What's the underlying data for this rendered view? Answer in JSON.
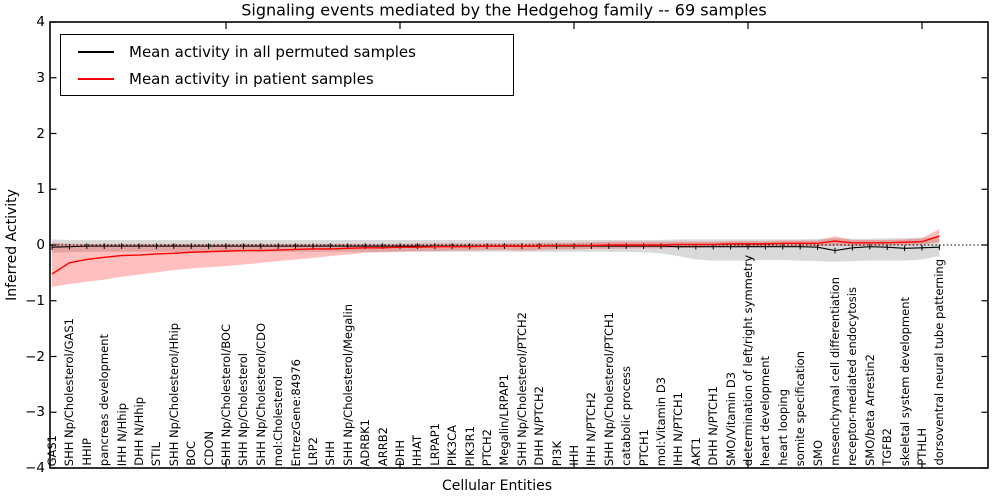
{
  "chart_data": {
    "type": "line",
    "title": "Signaling events mediated by the Hedgehog family -- 69 samples",
    "xlabel": "Cellular Entities",
    "ylabel": "Inferred Activity",
    "ylim": [
      -4,
      4
    ],
    "ytick_values": [
      4,
      3,
      2,
      1,
      0,
      -1,
      -2,
      -3,
      -4
    ],
    "ytick_labels": [
      "4",
      "3",
      "2",
      "1",
      "0",
      "−1",
      "−2",
      "−3",
      "−4"
    ],
    "xtick_values": [
      10,
      20,
      30,
      40,
      50
    ],
    "grid": false,
    "legend_position": "upper left",
    "zero_line": {
      "value": 0,
      "style": "dotted",
      "color": "#000000"
    },
    "categories": [
      "GAS1",
      "SHH Np/Cholesterol/GAS1",
      "HHIP",
      "pancreas development",
      "IHH N/Hhip",
      "DHH N/Hhip",
      "STIL",
      "SHH Np/Cholesterol/Hhip",
      "BOC",
      "CDON",
      "SHH Np/Cholesterol/BOC",
      "SHH Np/Cholesterol",
      "SHH Np/Cholesterol/CDO",
      "mol:Cholesterol",
      "EntrezGene:84976",
      "LRP2",
      "SHH",
      "SHH Np/Cholesterol/Megalin",
      "ADRBK1",
      "ARRB2",
      "DHH",
      "HHAT",
      "LRPAP1",
      "PIK3CA",
      "PIK3R1",
      "PTCH2",
      "Megalin/LRPAP1",
      "SHH Np/Cholesterol/PTCH2",
      "DHH N/PTCH2",
      "PI3K",
      "IHH",
      "IHH N/PTCH2",
      "SHH Np/Cholesterol/PTCH1",
      "catabolic process",
      "PTCH1",
      "mol:Vitamin D3",
      "IHH N/PTCH1",
      "AKT1",
      "DHH N/PTCH1",
      "SMO/Vitamin D3",
      "determination of left/right symmetry",
      "heart development",
      "heart looping",
      "somite specification",
      "SMO",
      "mesenchymal cell differentiation",
      "receptor-mediated endocytosis",
      "SMO/beta Arrestin2",
      "TGFB2",
      "skeletal system development",
      "PTHLH",
      "dorsoventral neural tube patterning"
    ],
    "series": [
      {
        "name": "Mean activity in all permuted samples",
        "color": "#000000",
        "marker": "vertical-tick",
        "band_color": "rgba(0,0,0,0.15)",
        "values": [
          -0.04,
          -0.03,
          -0.02,
          -0.02,
          -0.02,
          -0.02,
          -0.02,
          -0.02,
          -0.02,
          -0.02,
          -0.02,
          -0.02,
          -0.02,
          -0.02,
          -0.02,
          -0.02,
          -0.02,
          -0.02,
          -0.02,
          -0.02,
          -0.02,
          -0.02,
          -0.02,
          -0.02,
          -0.02,
          -0.02,
          -0.02,
          -0.02,
          -0.02,
          -0.02,
          -0.02,
          -0.02,
          -0.02,
          -0.02,
          -0.02,
          -0.02,
          -0.03,
          -0.03,
          -0.03,
          -0.03,
          -0.03,
          -0.03,
          -0.03,
          -0.03,
          -0.04,
          -0.1,
          -0.05,
          -0.03,
          -0.04,
          -0.06,
          -0.05,
          -0.04
        ],
        "band_upper": [
          0.1,
          0.09,
          0.09,
          0.09,
          0.09,
          0.09,
          0.09,
          0.09,
          0.09,
          0.09,
          0.09,
          0.09,
          0.09,
          0.09,
          0.09,
          0.09,
          0.09,
          0.09,
          0.09,
          0.09,
          0.09,
          0.09,
          0.09,
          0.09,
          0.09,
          0.09,
          0.09,
          0.09,
          0.09,
          0.09,
          0.09,
          0.09,
          0.09,
          0.09,
          0.09,
          0.09,
          0.1,
          0.1,
          0.1,
          0.1,
          0.1,
          0.1,
          0.1,
          0.1,
          0.11,
          0.12,
          0.11,
          0.11,
          0.12,
          0.12,
          0.13,
          0.14
        ],
        "band_lower": [
          -0.14,
          -0.13,
          -0.12,
          -0.12,
          -0.12,
          -0.12,
          -0.12,
          -0.12,
          -0.12,
          -0.12,
          -0.12,
          -0.12,
          -0.12,
          -0.12,
          -0.12,
          -0.12,
          -0.12,
          -0.12,
          -0.12,
          -0.12,
          -0.12,
          -0.12,
          -0.12,
          -0.12,
          -0.12,
          -0.12,
          -0.12,
          -0.12,
          -0.12,
          -0.12,
          -0.12,
          -0.12,
          -0.12,
          -0.12,
          -0.13,
          -0.15,
          -0.2,
          -0.26,
          -0.28,
          -0.28,
          -0.28,
          -0.27,
          -0.27,
          -0.28,
          -0.29,
          -0.3,
          -0.29,
          -0.28,
          -0.28,
          -0.28,
          -0.26,
          -0.2
        ]
      },
      {
        "name": "Mean activity in patient samples",
        "color": "#ff0000",
        "marker": "none",
        "band_color": "rgba(255,0,0,0.25)",
        "values": [
          -0.52,
          -0.32,
          -0.26,
          -0.22,
          -0.19,
          -0.18,
          -0.16,
          -0.15,
          -0.13,
          -0.12,
          -0.11,
          -0.1,
          -0.1,
          -0.09,
          -0.08,
          -0.07,
          -0.07,
          -0.06,
          -0.05,
          -0.05,
          -0.04,
          -0.04,
          -0.03,
          -0.03,
          -0.03,
          -0.02,
          -0.02,
          -0.02,
          -0.02,
          -0.01,
          -0.01,
          -0.01,
          0.0,
          0.0,
          0.0,
          0.0,
          0.01,
          0.01,
          0.01,
          0.02,
          0.02,
          0.02,
          0.03,
          0.03,
          0.03,
          0.07,
          0.04,
          0.04,
          0.04,
          0.05,
          0.06,
          0.16
        ],
        "band_upper": [
          0.04,
          0.02,
          0.02,
          0.02,
          0.02,
          0.02,
          0.02,
          0.02,
          0.02,
          0.02,
          0.02,
          0.02,
          0.02,
          0.02,
          0.02,
          0.02,
          0.02,
          0.02,
          0.02,
          0.02,
          0.02,
          0.03,
          0.03,
          0.03,
          0.03,
          0.03,
          0.03,
          0.03,
          0.04,
          0.04,
          0.04,
          0.05,
          0.06,
          0.06,
          0.06,
          0.06,
          0.06,
          0.06,
          0.06,
          0.07,
          0.07,
          0.07,
          0.08,
          0.08,
          0.08,
          0.16,
          0.09,
          0.09,
          0.09,
          0.1,
          0.12,
          0.29
        ],
        "band_lower": [
          -0.75,
          -0.7,
          -0.66,
          -0.62,
          -0.57,
          -0.53,
          -0.49,
          -0.45,
          -0.42,
          -0.4,
          -0.38,
          -0.35,
          -0.32,
          -0.29,
          -0.26,
          -0.23,
          -0.2,
          -0.17,
          -0.14,
          -0.13,
          -0.12,
          -0.11,
          -0.11,
          -0.1,
          -0.1,
          -0.09,
          -0.09,
          -0.1,
          -0.09,
          -0.08,
          -0.08,
          -0.07,
          -0.07,
          -0.06,
          -0.06,
          -0.06,
          -0.05,
          -0.05,
          -0.04,
          -0.04,
          -0.04,
          -0.03,
          -0.03,
          -0.02,
          -0.02,
          -0.01,
          -0.02,
          -0.01,
          -0.01,
          0.0,
          0.01,
          0.05
        ]
      }
    ]
  }
}
